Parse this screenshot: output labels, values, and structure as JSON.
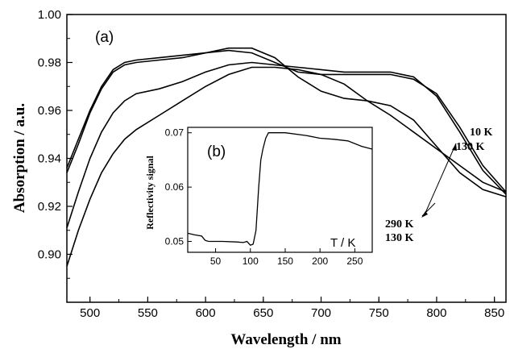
{
  "chart_data": [
    {
      "type": "line",
      "panel_label": "(a)",
      "xlabel": "Wavelength / nm",
      "ylabel": "Absorption / a.u.",
      "xlim": [
        480,
        860
      ],
      "ylim": [
        0.88,
        1.0
      ],
      "x_ticks": [
        "500",
        "550",
        "600",
        "650",
        "700",
        "750",
        "800",
        "850"
      ],
      "y_ticks": [
        "0.90",
        "0.92",
        "0.94",
        "0.96",
        "0.98",
        "1.00"
      ],
      "grid": false,
      "annotations": {
        "upper_top": "10 K",
        "upper_bottom": "130 K",
        "lower_top": "290 K",
        "lower_bottom": "130 K"
      },
      "series": [
        {
          "x": [
            480,
            490,
            500,
            510,
            520,
            530,
            540,
            560,
            580,
            600,
            620,
            640,
            660,
            680,
            700,
            720,
            740,
            760,
            780,
            800,
            820,
            840,
            860
          ],
          "y": [
            0.936,
            0.948,
            0.96,
            0.97,
            0.977,
            0.98,
            0.981,
            0.982,
            0.983,
            0.984,
            0.985,
            0.984,
            0.98,
            0.976,
            0.975,
            0.975,
            0.975,
            0.975,
            0.973,
            0.967,
            0.953,
            0.937,
            0.926
          ]
        },
        {
          "x": [
            480,
            490,
            500,
            510,
            520,
            530,
            540,
            560,
            580,
            600,
            620,
            640,
            660,
            680,
            700,
            720,
            740,
            760,
            780,
            800,
            820,
            840,
            860
          ],
          "y": [
            0.934,
            0.946,
            0.959,
            0.969,
            0.976,
            0.979,
            0.98,
            0.981,
            0.982,
            0.984,
            0.986,
            0.986,
            0.982,
            0.974,
            0.968,
            0.965,
            0.964,
            0.962,
            0.956,
            0.945,
            0.934,
            0.927,
            0.924
          ]
        },
        {
          "x": [
            480,
            490,
            500,
            510,
            520,
            530,
            540,
            560,
            580,
            600,
            620,
            640,
            660,
            680,
            700,
            720,
            740,
            760,
            780,
            800,
            820,
            840,
            860
          ],
          "y": [
            0.911,
            0.926,
            0.94,
            0.951,
            0.959,
            0.964,
            0.967,
            0.969,
            0.972,
            0.976,
            0.979,
            0.98,
            0.979,
            0.978,
            0.977,
            0.976,
            0.976,
            0.976,
            0.974,
            0.966,
            0.951,
            0.935,
            0.925
          ]
        },
        {
          "x": [
            480,
            490,
            500,
            510,
            520,
            530,
            540,
            560,
            580,
            600,
            620,
            640,
            660,
            680,
            700,
            720,
            740,
            760,
            780,
            800,
            820,
            840,
            860
          ],
          "y": [
            0.895,
            0.91,
            0.923,
            0.934,
            0.942,
            0.948,
            0.952,
            0.958,
            0.964,
            0.97,
            0.975,
            0.978,
            0.978,
            0.977,
            0.975,
            0.971,
            0.964,
            0.958,
            0.951,
            0.944,
            0.937,
            0.93,
            0.926
          ]
        }
      ]
    },
    {
      "type": "line",
      "panel_label": "(b)",
      "xlabel": "T / K",
      "ylabel": "Reflectivity signal",
      "xlim": [
        10,
        275
      ],
      "ylim": [
        0.048,
        0.071
      ],
      "x_ticks": [
        "50",
        "100",
        "150",
        "200",
        "250"
      ],
      "y_ticks": [
        "0.05",
        "0.06",
        "0.07"
      ],
      "grid": false,
      "series": [
        {
          "x": [
            10,
            20,
            30,
            35,
            40,
            60,
            80,
            90,
            95,
            100,
            104,
            108,
            112,
            115,
            118,
            122,
            126,
            130,
            150,
            180,
            200,
            220,
            240,
            260,
            275
          ],
          "y": [
            0.0515,
            0.0512,
            0.051,
            0.0502,
            0.05,
            0.05,
            0.0499,
            0.0498,
            0.05,
            0.0493,
            0.0495,
            0.052,
            0.06,
            0.065,
            0.067,
            0.069,
            0.07,
            0.07,
            0.07,
            0.0695,
            0.069,
            0.0688,
            0.0685,
            0.0675,
            0.067
          ]
        }
      ]
    }
  ]
}
